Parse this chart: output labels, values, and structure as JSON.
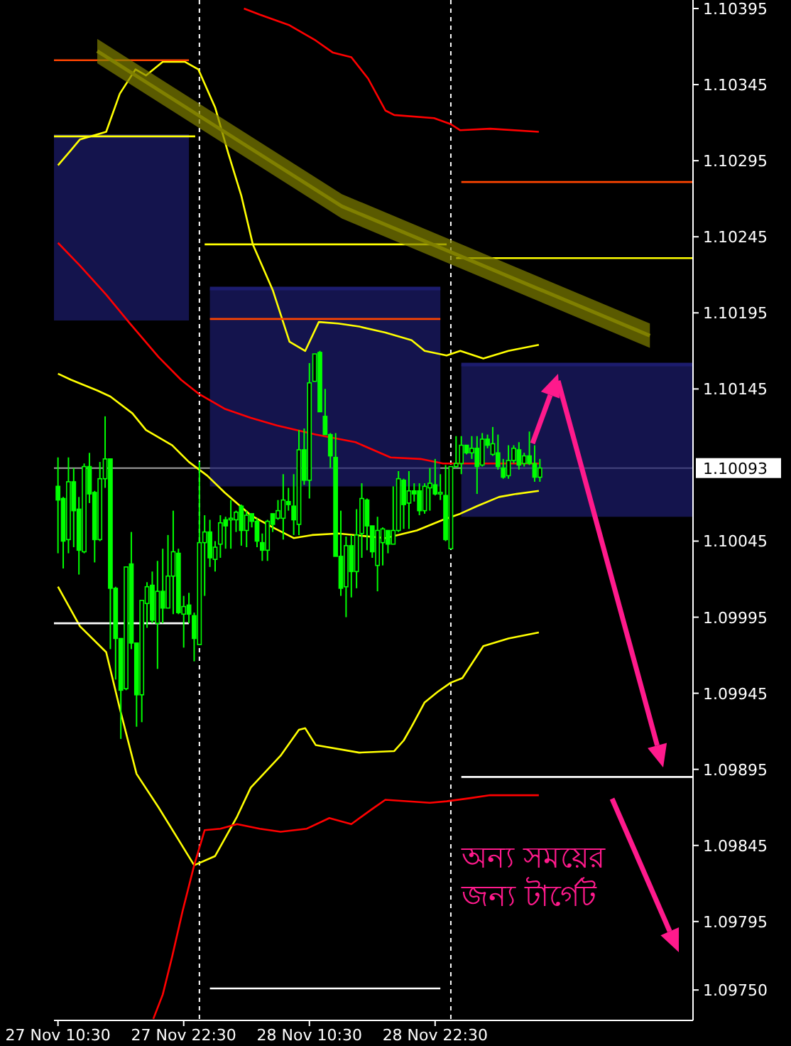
{
  "chart_data": {
    "type": "candlestick",
    "xlim": [
      "--11-27T10:07",
      "--11-29T23:07"
    ],
    "ylim": [
      1.0973,
      1.10395
    ],
    "xticks": [
      {
        "value": "--11-27T10:30",
        "label": "27 Nov 10:30"
      },
      {
        "value": "--11-27T22:30",
        "label": "27 Nov 22:30"
      },
      {
        "value": "--11-28T10:30",
        "label": "28 Nov 10:30"
      },
      {
        "value": "--11-28T22:30",
        "label": "28 Nov 22:30"
      }
    ],
    "yticks": [
      1.10395,
      1.10345,
      1.10295,
      1.10245,
      1.10195,
      1.10145,
      1.10045,
      1.09995,
      1.09945,
      1.09895,
      1.09845,
      1.09795,
      {
        "value": 1.0975,
        "label": "1.09750"
      }
    ],
    "ref_lines": [
      {
        "axis": "x",
        "value": "--11-28T00:00",
        "label": null,
        "color": "#ffffff",
        "line_style": "dashed"
      },
      {
        "axis": "x",
        "value": "--11-29T00:00",
        "label": null,
        "color": "#ffffff",
        "line_style": "dashed"
      },
      {
        "axis": "y",
        "value": 1.10093,
        "label": "1.10093",
        "color": "#a0a0a0",
        "line_style": "solid"
      }
    ],
    "annotations": [
      "অন্য সময়ের\nজন্য টার্গেট"
    ],
    "series": [
      {
        "type": "line",
        "color": "#1c1c6e",
        "x": [
          "--11-27T10:07",
          "--11-27T23:00"
        ],
        "values": [
          1.10311,
          1.10311
        ],
        "lower": [
          1.1019,
          1.1019
        ],
        "upper": [
          1.10311,
          1.10311
        ]
      },
      {
        "type": "line",
        "color": "#1c1c6e",
        "x": [
          "--11-28T01:00",
          "--11-28T23:00"
        ],
        "values": [
          1.10211,
          1.10211
        ],
        "lower": [
          1.10081,
          1.10081
        ],
        "upper": [
          1.10211,
          1.10211
        ]
      },
      {
        "type": "line",
        "color": "#1c1c6e",
        "x": [
          "--11-29T01:00",
          "--11-29T23:07"
        ],
        "values": [
          1.10161,
          1.10161
        ],
        "lower": [
          1.10061,
          1.10061
        ],
        "upper": [
          1.10161,
          1.10161
        ]
      },
      {
        "type": "line",
        "color": "#ffff00",
        "x": [
          "--11-27T10:30",
          "--11-27T11:45",
          "--11-27T12:36",
          "--11-27T15:06",
          "--11-27T16:24",
          "--11-27T17:54",
          "--11-27T18:54",
          "--11-27T20:30",
          "--11-27T22:36",
          "--11-27T23:54",
          "--11-28T01:30",
          "--11-28T02:45",
          "--11-28T04:00",
          "--11-28T05:06",
          "--11-28T07:00",
          "--11-28T08:36",
          "--11-28T10:06",
          "--11-28T11:24",
          "--11-28T13:15",
          "--11-28T15:15",
          "--11-28T17:45",
          "--11-28T20:15",
          "--11-28T21:30",
          "--11-28T23:36",
          "--11-29T00:54",
          "--11-29T03:06",
          "--11-29T05:30",
          "--11-29T08:24"
        ],
        "values": [
          1.10292,
          1.10302,
          1.10309,
          1.10314,
          1.10339,
          1.10355,
          1.10351,
          1.1036,
          1.1036,
          1.10355,
          1.1033,
          1.103,
          1.10272,
          1.1024,
          1.1021,
          1.10176,
          1.1017,
          1.10189,
          1.10188,
          1.10186,
          1.10182,
          1.10177,
          1.1017,
          1.10167,
          1.1017,
          1.10165,
          1.1017,
          1.10174
        ]
      },
      {
        "type": "line",
        "color": "#ffff00",
        "x": [
          "--11-27T10:30",
          "--11-27T11:45",
          "--11-27T14:15",
          "--11-27T15:30",
          "--11-27T17:36",
          "--11-27T18:54",
          "--11-27T21:24",
          "--11-27T23:00",
          "--11-28T00:45",
          "--11-28T02:24",
          "--11-28T04:54",
          "--11-28T07:00",
          "--11-28T09:00",
          "--11-28T10:45",
          "--11-28T13:15",
          "--11-28T17:45",
          "--11-28T20:45",
          "--11-28T23:15",
          "--11-29T00:54",
          "--11-29T02:30",
          "--11-29T04:36",
          "--11-29T06:15",
          "--11-29T08:24"
        ],
        "values": [
          1.10155,
          1.10151,
          1.10144,
          1.1014,
          1.10129,
          1.10118,
          1.10108,
          1.10097,
          1.10088,
          1.10077,
          1.10062,
          1.10054,
          1.10047,
          1.10049,
          1.1005,
          1.10047,
          1.10052,
          1.10059,
          1.10063,
          1.10068,
          1.10074,
          1.10076,
          1.10078
        ]
      },
      {
        "type": "line",
        "color": "#ffff00",
        "x": [
          "--11-27T10:30",
          "--11-27T12:36",
          "--11-27T15:06",
          "--11-27T16:24",
          "--11-27T18:00",
          "--11-27T20:06",
          "--11-27T22:15",
          "--11-27T23:30",
          "--11-28T01:30",
          "--11-28T03:36",
          "--11-28T04:54",
          "--11-28T07:45",
          "--11-28T09:30",
          "--11-28T10:06",
          "--11-28T11:06",
          "--11-28T15:15",
          "--11-28T18:36",
          "--11-28T19:30",
          "--11-28T20:15",
          "--11-28T21:30",
          "--11-28T22:45",
          "--11-29T00:00",
          "--11-29T01:06",
          "--11-29T03:06",
          "--11-29T05:30",
          "--11-29T08:24"
        ],
        "values": [
          1.10015,
          1.09989,
          1.09972,
          1.09935,
          1.09892,
          1.0987,
          1.09846,
          1.09832,
          1.09838,
          1.09864,
          1.09883,
          1.09904,
          1.09921,
          1.09922,
          1.09911,
          1.09906,
          1.09907,
          1.09914,
          1.09923,
          1.09939,
          1.09946,
          1.09952,
          1.09955,
          1.09976,
          1.09981,
          1.09985
        ]
      },
      {
        "type": "line",
        "color": "#ff0000",
        "x": [
          "--11-28T04:15",
          "--11-28T05:45",
          "--11-28T08:36",
          "--11-28T11:06",
          "--11-28T12:45",
          "--11-28T14:30",
          "--11-28T16:06",
          "--11-28T17:45",
          "--11-28T18:36",
          "--11-28T22:24",
          "--11-29T00:00",
          "--11-29T00:54",
          "--11-29T03:45",
          "--11-29T08:24"
        ],
        "values": [
          1.10395,
          1.10391,
          1.10384,
          1.10374,
          1.10366,
          1.10363,
          1.10349,
          1.10328,
          1.10325,
          1.10323,
          1.10319,
          1.10315,
          1.10316,
          1.10314
        ]
      },
      {
        "type": "line",
        "color": "#ff0000",
        "x": [
          "--11-27T10:30",
          "--11-27T12:36",
          "--11-27T15:06",
          "--11-27T17:15",
          "--11-27T20:06",
          "--11-27T22:15",
          "--11-27T23:54",
          "--11-28T02:24",
          "--11-28T04:54",
          "--11-28T07:24",
          "--11-28T11:06",
          "--11-28T14:54",
          "--11-28T18:15",
          "--11-28T21:06",
          "--11-28T23:15",
          "--11-29T08:24"
        ],
        "values": [
          1.10241,
          1.10226,
          1.10207,
          1.10189,
          1.10166,
          1.10151,
          1.10142,
          1.10132,
          1.10126,
          1.10121,
          1.10115,
          1.1011,
          1.101,
          1.10099,
          1.10096,
          1.10096
        ]
      },
      {
        "type": "line",
        "color": "#ff0000",
        "x": [
          "--11-27T19:36",
          "--11-27T20:30",
          "--11-27T21:24",
          "--11-27T22:24",
          "--11-27T23:30",
          "--11-28T00:30",
          "--11-28T02:00",
          "--11-28T03:36",
          "--11-28T05:45",
          "--11-28T07:45",
          "--11-28T10:15",
          "--11-28T12:24",
          "--11-28T14:30",
          "--11-28T16:30",
          "--11-28T17:45",
          "--11-28T22:00",
          "--11-28T23:36",
          "--11-29T01:45",
          "--11-29T03:45",
          "--11-29T08:24"
        ],
        "values": [
          1.09731,
          1.09747,
          1.09772,
          1.09802,
          1.09832,
          1.09855,
          1.09856,
          1.09859,
          1.09856,
          1.09854,
          1.09856,
          1.09863,
          1.09859,
          1.09869,
          1.09875,
          1.09873,
          1.09874,
          1.09876,
          1.09878,
          1.09878
        ]
      },
      {
        "type": "line",
        "color": "#ff4500",
        "x": [
          "--11-27T10:07",
          "--11-27T23:00"
        ],
        "values": [
          1.10361,
          1.10361
        ]
      },
      {
        "type": "line",
        "color": "#ffff00",
        "x": [
          "--11-27T10:07",
          "--11-27T23:36"
        ],
        "values": [
          1.10311,
          1.10311
        ]
      },
      {
        "type": "line",
        "color": "#ffff00",
        "x": [
          "--11-28T00:30",
          "--11-28T23:36"
        ],
        "values": [
          1.1024,
          1.1024
        ]
      },
      {
        "type": "line",
        "color": "#ffff00",
        "x": [
          "--11-29T00:30",
          "--11-29T23:07"
        ],
        "values": [
          1.10231,
          1.10231
        ]
      },
      {
        "type": "line",
        "color": "#ff4500",
        "x": [
          "--11-29T01:00",
          "--11-29T23:07"
        ],
        "values": [
          1.10281,
          1.10281
        ]
      },
      {
        "type": "line",
        "color": "#ff4500",
        "x": [
          "--11-28T01:00",
          "--11-28T23:00"
        ],
        "values": [
          1.10191,
          1.10191
        ]
      },
      {
        "type": "line",
        "color": "#ffffff",
        "x": [
          "--11-27T10:07",
          "--11-27T23:00"
        ],
        "values": [
          1.09991,
          1.09991
        ]
      },
      {
        "type": "line",
        "color": "#ffffff",
        "x": [
          "--11-28T01:00",
          "--11-28T23:00"
        ],
        "values": [
          1.09751,
          1.09751
        ]
      },
      {
        "type": "line",
        "color": "#ffffff",
        "x": [
          "--11-29T01:00",
          "--11-29T23:07"
        ],
        "values": [
          1.0989,
          1.0989
        ]
      },
      {
        "type": "line",
        "color": "#808000",
        "x": [
          "--11-27T14:15",
          "--11-28T13:36",
          "--11-29T19:00"
        ],
        "values": [
          1.10367,
          1.10265,
          1.1018
        ],
        "lower": [
          1.10359,
          1.10257,
          1.10172
        ],
        "upper": [
          1.10375,
          1.10273,
          1.10188
        ]
      },
      {
        "type": "candlestick",
        "color": "#00ff00",
        "x": [
          "--11-27T10:30",
          "--11-27T11:00",
          "--11-27T11:30",
          "--11-27T12:00",
          "--11-27T12:30",
          "--11-27T13:00",
          "--11-27T13:30",
          "--11-27T14:00",
          "--11-27T14:30",
          "--11-27T15:00",
          "--11-27T15:30",
          "--11-27T16:00",
          "--11-27T16:30",
          "--11-27T17:00",
          "--11-27T17:30",
          "--11-27T18:00",
          "--11-27T18:30",
          "--11-27T19:00",
          "--11-27T19:30",
          "--11-27T20:00",
          "--11-27T20:30",
          "--11-27T21:00",
          "--11-27T21:30",
          "--11-27T22:00",
          "--11-27T22:30",
          "--11-27T23:00",
          "--11-27T23:30",
          "--11-28T00:00",
          "--11-28T00:30",
          "--11-28T01:00",
          "--11-28T01:30",
          "--11-28T02:00",
          "--11-28T02:30",
          "--11-28T03:00",
          "--11-28T03:30",
          "--11-28T04:00",
          "--11-28T04:30",
          "--11-28T05:00",
          "--11-28T05:30",
          "--11-28T06:00",
          "--11-28T06:30",
          "--11-28T07:00",
          "--11-28T07:30",
          "--11-28T08:00",
          "--11-28T08:30",
          "--11-28T09:00",
          "--11-28T09:30",
          "--11-28T10:00",
          "--11-28T10:30",
          "--11-28T11:00",
          "--11-28T11:30",
          "--11-28T12:00",
          "--11-28T12:30",
          "--11-28T13:00",
          "--11-28T13:30",
          "--11-28T14:00",
          "--11-28T14:30",
          "--11-28T15:00",
          "--11-28T15:30",
          "--11-28T16:00",
          "--11-28T16:30",
          "--11-28T17:00",
          "--11-28T17:30",
          "--11-28T18:00",
          "--11-28T18:30",
          "--11-28T19:00",
          "--11-28T19:30",
          "--11-28T20:00",
          "--11-28T20:30",
          "--11-28T21:00",
          "--11-28T21:30",
          "--11-28T22:00",
          "--11-28T22:30",
          "--11-28T23:00",
          "--11-28T23:30",
          "--11-29T00:00",
          "--11-29T00:30",
          "--11-29T01:00",
          "--11-29T01:30",
          "--11-29T02:00",
          "--11-29T02:30",
          "--11-29T03:00",
          "--11-29T03:30",
          "--11-29T04:00",
          "--11-29T04:30",
          "--11-29T05:00",
          "--11-29T05:30",
          "--11-29T06:00",
          "--11-29T06:30",
          "--11-29T07:00",
          "--11-29T07:30",
          "--11-29T08:00",
          "--11-29T08:30"
        ],
        "ohlc": [
          [
            1.10081,
            1.101,
            1.10037,
            1.10072
          ],
          [
            1.10073,
            1.10074,
            1.10027,
            1.10045
          ],
          [
            1.10046,
            1.101,
            1.10037,
            1.10084
          ],
          [
            1.10084,
            1.10093,
            1.10041,
            1.10065
          ],
          [
            1.10066,
            1.10074,
            1.10023,
            1.10039
          ],
          [
            1.10038,
            1.10096,
            1.10037,
            1.10094
          ],
          [
            1.10094,
            1.10103,
            1.1007,
            1.10076
          ],
          [
            1.10077,
            1.10078,
            1.10031,
            1.10046
          ],
          [
            1.10046,
            1.10097,
            1.10045,
            1.10086
          ],
          [
            1.10086,
            1.10127,
            1.1008,
            1.10099
          ],
          [
            1.10099,
            1.10099,
            1.09974,
            1.10014
          ],
          [
            1.10014,
            1.10015,
            1.09954,
            1.09981
          ],
          [
            1.09981,
            1.09981,
            1.09915,
            1.09947
          ],
          [
            1.09948,
            1.10028,
            1.09947,
            1.10028
          ],
          [
            1.1003,
            1.10051,
            1.09974,
            1.09978
          ],
          [
            1.09978,
            1.09978,
            1.09923,
            1.09944
          ],
          [
            1.09944,
            1.10006,
            1.09926,
            1.10006
          ],
          [
            1.10004,
            1.10018,
            1.09988,
            1.10015
          ],
          [
            1.10016,
            1.10025,
            1.09991,
            1.09993
          ],
          [
            1.09991,
            1.10032,
            1.09961,
            1.10012
          ],
          [
            1.10012,
            1.1004,
            1.09991,
            1.10001
          ],
          [
            1.10001,
            1.10049,
            1.10001,
            1.10022
          ],
          [
            1.10022,
            1.10065,
            1.09997,
            1.10038
          ],
          [
            1.10037,
            1.1004,
            1.09997,
            1.09998
          ],
          [
            1.09997,
            1.10009,
            1.09975,
            1.10002
          ],
          [
            1.10003,
            1.10011,
            1.09991,
            1.09997
          ],
          [
            1.09996,
            1.09998,
            1.09966,
            1.09981
          ],
          [
            1.09977,
            1.10097,
            1.09977,
            1.10044
          ],
          [
            1.10044,
            1.10062,
            1.10009,
            1.10051
          ],
          [
            1.10051,
            1.10059,
            1.10028,
            1.10034
          ],
          [
            1.10033,
            1.10045,
            1.10025,
            1.10041
          ],
          [
            1.10043,
            1.10062,
            1.10034,
            1.10057
          ],
          [
            1.10059,
            1.10061,
            1.1004,
            1.10055
          ],
          [
            1.10059,
            1.10072,
            1.1004,
            1.1006
          ],
          [
            1.10059,
            1.10065,
            1.10051,
            1.10064
          ],
          [
            1.10068,
            1.10069,
            1.10042,
            1.10052
          ],
          [
            1.10052,
            1.10065,
            1.10041,
            1.10062
          ],
          [
            1.10063,
            1.10063,
            1.10054,
            1.10058
          ],
          [
            1.10058,
            1.1006,
            1.10041,
            1.10045
          ],
          [
            1.10044,
            1.1005,
            1.10032,
            1.10039
          ],
          [
            1.10039,
            1.10059,
            1.10032,
            1.10058
          ],
          [
            1.10063,
            1.10063,
            1.10051,
            1.10056
          ],
          [
            1.1006,
            1.10072,
            1.10059,
            1.10065
          ],
          [
            1.1006,
            1.10089,
            1.10046,
            1.10072
          ],
          [
            1.10071,
            1.1008,
            1.10065,
            1.10069
          ],
          [
            1.10068,
            1.10089,
            1.10049,
            1.10059
          ],
          [
            1.10056,
            1.10118,
            1.10049,
            1.10105
          ],
          [
            1.10105,
            1.10119,
            1.10082,
            1.10085
          ],
          [
            1.10085,
            1.10162,
            1.10073,
            1.10149
          ],
          [
            1.1015,
            1.10168,
            1.1015,
            1.10168
          ],
          [
            1.10169,
            1.1017,
            1.1013,
            1.1013
          ],
          [
            1.10127,
            1.10145,
            1.10115,
            1.10115
          ],
          [
            1.10115,
            1.10116,
            1.10093,
            1.10101
          ],
          [
            1.101,
            1.10116,
            1.10035,
            1.10035
          ],
          [
            1.10035,
            1.10065,
            1.10009,
            1.10014
          ],
          [
            1.10015,
            1.10048,
            1.09995,
            1.10042
          ],
          [
            1.10042,
            1.10049,
            1.10008,
            1.10025
          ],
          [
            1.10025,
            1.10066,
            1.10014,
            1.10049
          ],
          [
            1.1005,
            1.10083,
            1.10034,
            1.10073
          ],
          [
            1.10072,
            1.10073,
            1.10039,
            1.10055
          ],
          [
            1.10055,
            1.10055,
            1.10034,
            1.10038
          ],
          [
            1.10029,
            1.10061,
            1.10012,
            1.10052
          ],
          [
            1.10044,
            1.10054,
            1.10029,
            1.10053
          ],
          [
            1.10052,
            1.10052,
            1.10037,
            1.10043
          ],
          [
            1.10043,
            1.10081,
            1.10043,
            1.10052
          ],
          [
            1.10052,
            1.10091,
            1.10051,
            1.10086
          ],
          [
            1.10085,
            1.10086,
            1.10053,
            1.10069
          ],
          [
            1.1007,
            1.10091,
            1.10053,
            1.10078
          ],
          [
            1.10078,
            1.10083,
            1.10071,
            1.10076
          ],
          [
            1.10078,
            1.10083,
            1.10062,
            1.10065
          ],
          [
            1.10065,
            1.10083,
            1.10063,
            1.10081
          ],
          [
            1.1008,
            1.10093,
            1.10065,
            1.10083
          ],
          [
            1.10082,
            1.10099,
            1.10075,
            1.10076
          ],
          [
            1.10076,
            1.10089,
            1.10072,
            1.10077
          ],
          [
            1.10075,
            1.10095,
            1.10045,
            1.10046
          ],
          [
            1.1004,
            1.10094,
            1.1004,
            1.10094
          ],
          [
            1.10094,
            1.10114,
            1.10093,
            1.10096
          ],
          [
            1.10096,
            1.10114,
            1.10089,
            1.10108
          ],
          [
            1.10108,
            1.10108,
            1.10102,
            1.10103
          ],
          [
            1.10103,
            1.10114,
            1.10099,
            1.10106
          ],
          [
            1.10106,
            1.10114,
            1.10076,
            1.10094
          ],
          [
            1.10095,
            1.10116,
            1.10094,
            1.10112
          ],
          [
            1.10112,
            1.10115,
            1.10106,
            1.10108
          ],
          [
            1.10102,
            1.1012,
            1.10101,
            1.10109
          ],
          [
            1.10103,
            1.10115,
            1.10092,
            1.10094
          ],
          [
            1.10093,
            1.10099,
            1.10086,
            1.10087
          ],
          [
            1.10088,
            1.10108,
            1.10086,
            1.10098
          ],
          [
            1.10098,
            1.10108,
            1.10096,
            1.10106
          ],
          [
            1.10105,
            1.1011,
            1.10092,
            1.10095
          ],
          [
            1.10096,
            1.10103,
            1.10094,
            1.10101
          ],
          [
            1.10101,
            1.10117,
            1.10095,
            1.10096
          ],
          [
            1.10096,
            1.10108,
            1.10084,
            1.10087
          ],
          [
            1.10087,
            1.10099,
            1.10084,
            1.10093
          ]
        ]
      }
    ]
  }
}
